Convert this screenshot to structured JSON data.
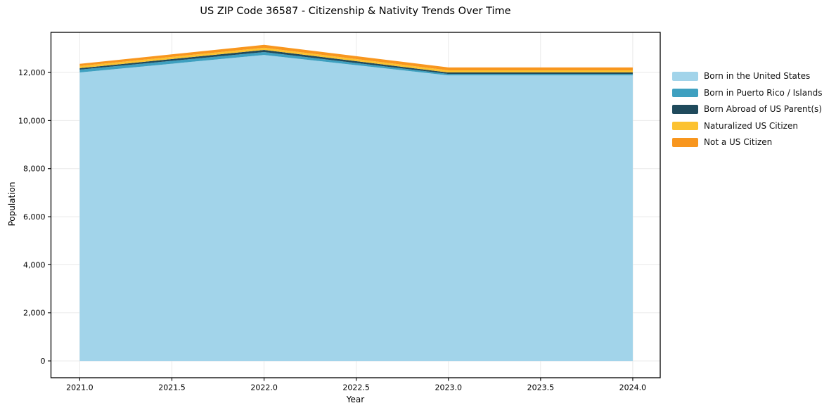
{
  "page": {
    "title": "US ZIP Code 36587 - Citizenship & Nativity Trends Over Time"
  },
  "chart_data": {
    "type": "area",
    "stacked": true,
    "title": "US ZIP Code 36587 - Citizenship & Nativity Trends Over Time",
    "xlabel": "Year",
    "ylabel": "Population",
    "x": [
      2021,
      2022,
      2023,
      2024
    ],
    "series": [
      {
        "name": "Born in the United States",
        "color": "#A2D4EA",
        "values": [
          12000,
          12730,
          11880,
          11880
        ]
      },
      {
        "name": "Born in Puerto Rico / Islands",
        "color": "#3EA0C0",
        "values": [
          120,
          120,
          60,
          60
        ]
      },
      {
        "name": "Born Abroad of US Parent(s)",
        "color": "#1F4A5C",
        "values": [
          60,
          90,
          60,
          60
        ]
      },
      {
        "name": "Naturalized US Citizen",
        "color": "#FCC230",
        "values": [
          90,
          90,
          90,
          90
        ]
      },
      {
        "name": "Not a US Citizen",
        "color": "#F8961E",
        "values": [
          90,
          120,
          120,
          120
        ]
      }
    ],
    "totals": [
      12360,
      13150,
      12210,
      12210
    ],
    "x_ticks": {
      "values": [
        2021.0,
        2021.5,
        2022.0,
        2022.5,
        2023.0,
        2023.5,
        2024.0
      ],
      "labels": [
        "2021.0",
        "2021.5",
        "2022.0",
        "2022.5",
        "2023.0",
        "2023.5",
        "2024.0"
      ]
    },
    "y_ticks": {
      "values": [
        0,
        2000,
        4000,
        6000,
        8000,
        10000,
        12000
      ],
      "labels": [
        "0",
        "2,000",
        "4,000",
        "6,000",
        "8,000",
        "10,000",
        "12,000"
      ]
    },
    "xlim": [
      2020.844,
      2024.149
    ],
    "ylim": [
      -700,
      13670
    ],
    "grid": true,
    "grid_color": "#e9e9e9",
    "spine_color": "#000000",
    "background": "#ffffff",
    "legend_position": "right-outside"
  }
}
